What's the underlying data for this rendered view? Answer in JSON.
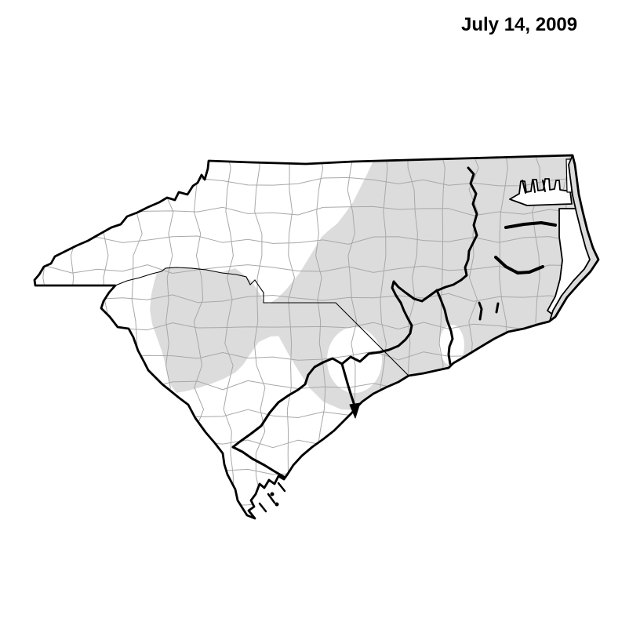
{
  "header": {
    "date_label": "July 14, 2009"
  },
  "map": {
    "colors": {
      "background": "#ffffff",
      "land_fill": "#ffffff",
      "shaded_overlay": "#dcdcdc",
      "county_line": "#a8a8a8",
      "border_line": "#000000",
      "water_fill": "#ffffff"
    }
  }
}
